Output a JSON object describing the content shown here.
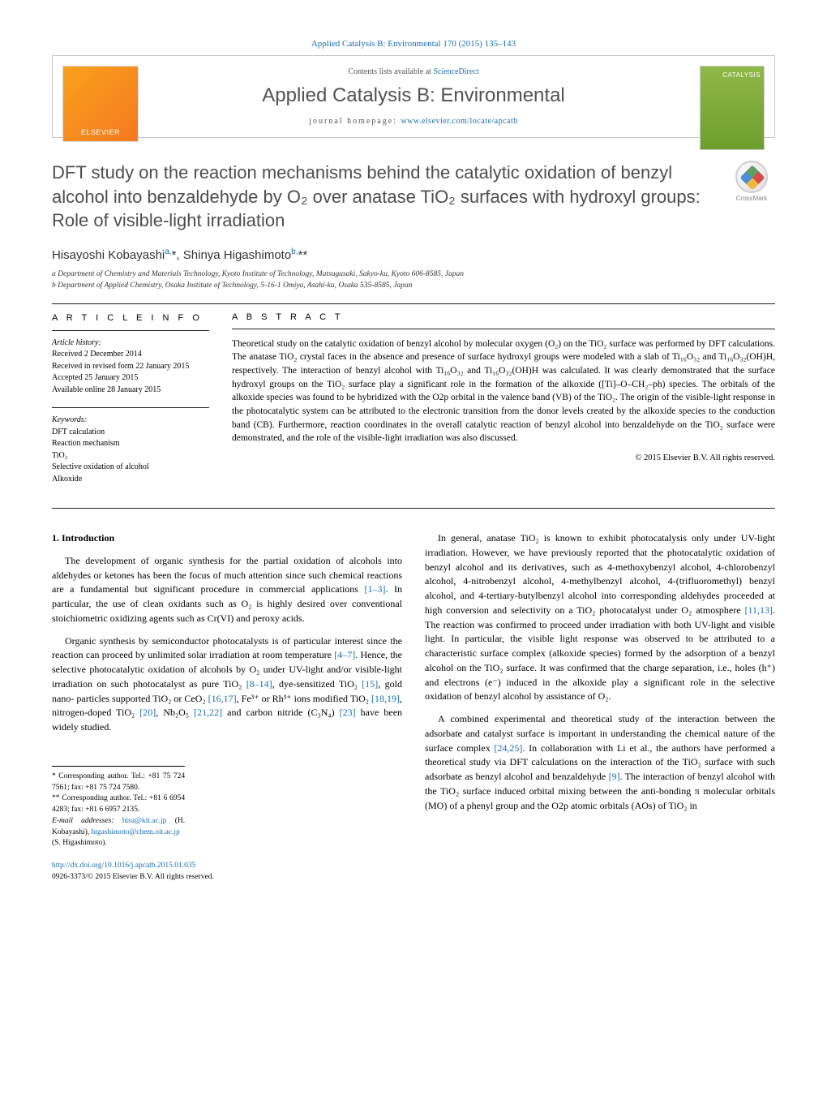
{
  "journal_header_link": "Applied Catalysis B: Environmental 170 (2015) 135–143",
  "header": {
    "contents_prefix": "Contents lists available at ",
    "contents_link": "ScienceDirect",
    "journal_name": "Applied Catalysis B: Environmental",
    "homepage_prefix": "journal homepage: ",
    "homepage_link": "www.elsevier.com/locate/apcatb",
    "elsevier": "ELSEVIER",
    "cover_text": "CATALYSIS"
  },
  "title": "DFT study on the reaction mechanisms behind the catalytic oxidation of benzyl alcohol into benzaldehyde by O₂ over anatase TiO₂ surfaces with hydroxyl groups: Role of visible-light irradiation",
  "crossmark": "CrossMark",
  "authors_html": "Hisayoshi Kobayashi<sup>a,</sup>*, Shinya Higashimoto<sup>b,</sup>**",
  "affiliations": {
    "a": "a Department of Chemistry and Materials Technology, Kyoto Institute of Technology, Matsugasaki, Sakyo-ku, Kyoto 606-8585, Japan",
    "b": "b Department of Applied Chemistry, Osaka Institute of Technology, 5-16-1 Omiya, Asahi-ku, Osaka 535-8585, Japan"
  },
  "article_info": {
    "head": "A R T I C L E   I N F O",
    "history_label": "Article history:",
    "history": [
      "Received 2 December 2014",
      "Received in revised form 22 January 2015",
      "Accepted 25 January 2015",
      "Available online 28 January 2015"
    ],
    "keywords_label": "Keywords:",
    "keywords": [
      "DFT calculation",
      "Reaction mechanism",
      "TiO₂",
      "Selective oxidation of alcohol",
      "Alkoxide"
    ]
  },
  "abstract": {
    "head": "A B S T R A C T",
    "body": "Theoretical study on the catalytic oxidation of benzyl alcohol by molecular oxygen (O₂) on the TiO₂ surface was performed by DFT calculations. The anatase TiO₂ crystal faces in the absence and presence of surface hydroxyl groups were modeled with a slab of Ti₁₆O₃₂ and Ti₁₆O₃₂(OH)H, respectively. The interaction of benzyl alcohol with Ti₁₆O₃₂ and Ti₁₆O₃₂(OH)H was calculated. It was clearly demonstrated that the surface hydroxyl groups on the TiO₂ surface play a significant role in the formation of the alkoxide ([Ti]–O–CH₂–ph) species. The orbitals of the alkoxide species was found to be hybridized with the O2p orbital in the valence band (VB) of the TiO₂. The origin of the visible-light response in the photocatalytic system can be attributed to the electronic transition from the donor levels created by the alkoxide species to the conduction band (CB). Furthermore, reaction coordinates in the overall catalytic reaction of benzyl alcohol into benzaldehyde on the TiO₂ surface were demonstrated, and the role of the visible-light irradiation was also discussed.",
    "copyright": "© 2015 Elsevier B.V. All rights reserved."
  },
  "section1": {
    "head": "1.  Introduction",
    "p1": "The development of organic synthesis for the partial oxidation of alcohols into aldehydes or ketones has been the focus of much attention since such chemical reactions are a fundamental but significant procedure in commercial applications [1–3]. In particular, the use of clean oxidants such as O₂ is highly desired over conventional stoichiometric oxidizing agents such as Cr(VI) and peroxy acids.",
    "p2": "Organic synthesis by semiconductor photocatalysts is of particular interest since the reaction can proceed by unlimited solar irradiation at room temperature [4–7]. Hence, the selective photocatalytic oxidation of alcohols by O₂ under UV-light and/or visible-light irradiation on such photocatalyst as pure TiO₂ [8–14], dye-sensitized TiO₂ [15], gold nano- particles supported TiO₂ or CeO₂ [16,17], Fe³⁺ or Rh³⁺ ions modified TiO₂ [18,19], nitrogen-doped TiO₂ [20], Nb₂O₅ [21,22] and carbon nitride (C₃N₄) [23] have been widely studied.",
    "p3": "In general, anatase TiO₂ is known to exhibit photocatalysis only under UV-light irradiation. However, we have previously reported that the photocatalytic oxidation of benzyl alcohol and its derivatives, such as 4-methoxybenzyl alcohol, 4-chlorobenzyl alcohol, 4-nitrobenzyl alcohol, 4-methylbenzyl alcohol, 4-(trifluoromethyl) benzyl alcohol, and 4-tertiary-butylbenzyl alcohol into corresponding aldehydes proceeded at high conversion and selectivity on a TiO₂ photocatalyst under O₂ atmosphere [11,13]. The reaction was confirmed to proceed under irradiation with both UV-light and visible light. In particular, the visible light response was observed to be attributed to a characteristic surface complex (alkoxide species) formed by the adsorption of a benzyl alcohol on the TiO₂ surface. It was confirmed that the charge separation, i.e., holes (h⁺) and electrons (e⁻) induced in the alkoxide play a significant role in the selective oxidation of benzyl alcohol by assistance of O₂.",
    "p4": "A combined experimental and theoretical study of the interaction between the adsorbate and catalyst surface is important in understanding the chemical nature of the surface complex [24,25]. In collaboration with Li et al., the authors have performed a theoretical study via DFT calculations on the interaction of the TiO₂ surface with such adsorbate as benzyl alcohol and benzaldehyde [9]. The interaction of benzyl alcohol with the TiO₂ surface induced orbital mixing between the anti-bonding π molecular orbitals (MO) of a phenyl group and the O2p atomic orbitals (AOs) of TiO₂ in"
  },
  "footnotes": {
    "f1": "* Corresponding author. Tel.: +81 75 724 7561; fax: +81 75 724 7580.",
    "f2": "** Corresponding author. Tel.: +81 6 6954 4283; fax: +81 6 6957 2135.",
    "email_label": "E-mail addresses: ",
    "email1": "hisa@kit.ac.jp",
    "email1_name": " (H. Kobayashi), ",
    "email2": "higashimoto@chem.oit.ac.jp",
    "email2_name": "(S. Higashimoto)."
  },
  "footer": {
    "doi": "http://dx.doi.org/10.1016/j.apcatb.2015.01.035",
    "issn": "0926-3373/© 2015 Elsevier B.V. All rights reserved."
  },
  "colors": {
    "link": "#1a6db5",
    "text": "#000000",
    "title_gray": "#4e4e4e",
    "border": "#c8c8c8"
  }
}
